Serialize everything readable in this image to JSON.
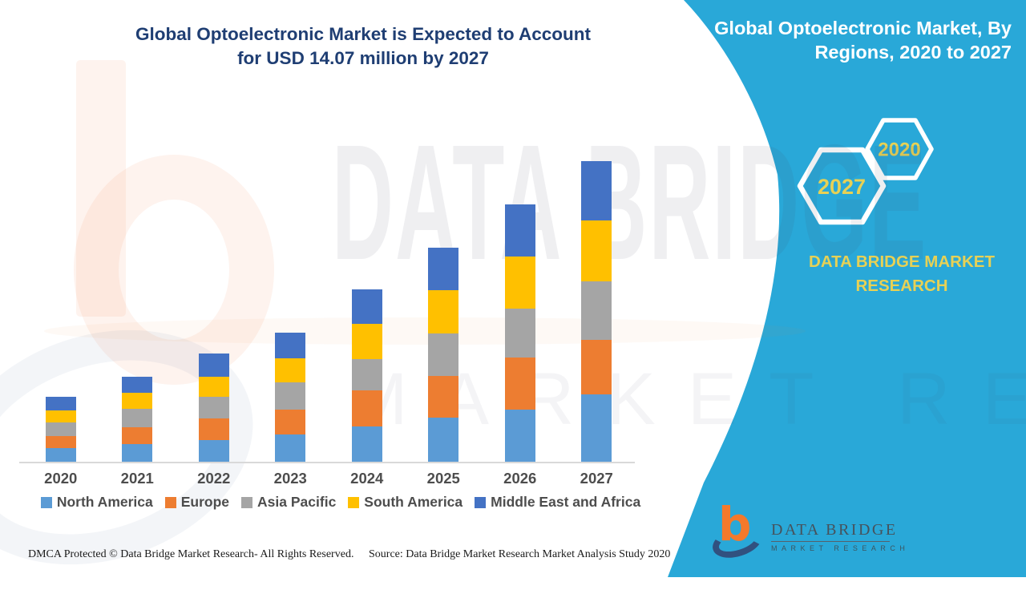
{
  "header": {
    "main_title_line1": "Global Optoelectronic Market is Expected to Account",
    "main_title_line2": "for USD 14.07 million by 2027"
  },
  "panel": {
    "color": "#29A8D8",
    "title_line1": "Global Optoelectronic Market, By",
    "title_line2": "Regions, 2020 to 2027",
    "hexagon_left_label": "2027",
    "hexagon_right_label": "2020",
    "brand_line1": "DATA BRIDGE MARKET",
    "brand_line2": "RESEARCH",
    "accent_yellow": "#E7D155"
  },
  "chart_data": {
    "type": "bar",
    "stacked": true,
    "title": "Global Optoelectronic Market is Expected to Account for USD 14.07 million by 2027",
    "unit": "USD million",
    "categories": [
      "2020",
      "2021",
      "2022",
      "2023",
      "2024",
      "2025",
      "2026",
      "2027"
    ],
    "series": [
      {
        "name": "North America",
        "color": "#5B9BD5",
        "values": [
          0.63,
          0.83,
          1.03,
          1.29,
          1.64,
          2.07,
          2.44,
          3.16
        ]
      },
      {
        "name": "Europe",
        "color": "#ED7D31",
        "values": [
          0.59,
          0.79,
          1.0,
          1.17,
          1.69,
          1.94,
          2.44,
          2.54
        ]
      },
      {
        "name": "Asia Pacific",
        "color": "#A5A5A5",
        "values": [
          0.63,
          0.85,
          1.03,
          1.25,
          1.5,
          2.0,
          2.32,
          2.76
        ]
      },
      {
        "name": "South America",
        "color": "#FFC000",
        "values": [
          0.56,
          0.75,
          0.94,
          1.15,
          1.65,
          2.04,
          2.44,
          2.85
        ]
      },
      {
        "name": "Middle East and Africa",
        "color": "#4472C4",
        "values": [
          0.64,
          0.78,
          1.06,
          1.2,
          1.6,
          2.0,
          2.42,
          2.77
        ]
      }
    ],
    "totals": [
      3.05,
      4.0,
      5.06,
      6.06,
      8.08,
      10.05,
      12.06,
      14.07
    ],
    "ylim": [
      0,
      14.5
    ],
    "grid": false,
    "legend_position": "bottom",
    "xlabel": "",
    "ylabel": ""
  },
  "watermark": {
    "text_line1": "DATA BRIDGE",
    "text_line2": "MARKET RESEARCH"
  },
  "footer": {
    "left": "DMCA Protected © Data Bridge Market Research- All Rights Reserved.",
    "right": "Source: Data Bridge Market Research Market Analysis Study 2020"
  },
  "logo": {
    "title": "DATA BRIDGE",
    "subtitle": "MARKET RESEARCH"
  }
}
